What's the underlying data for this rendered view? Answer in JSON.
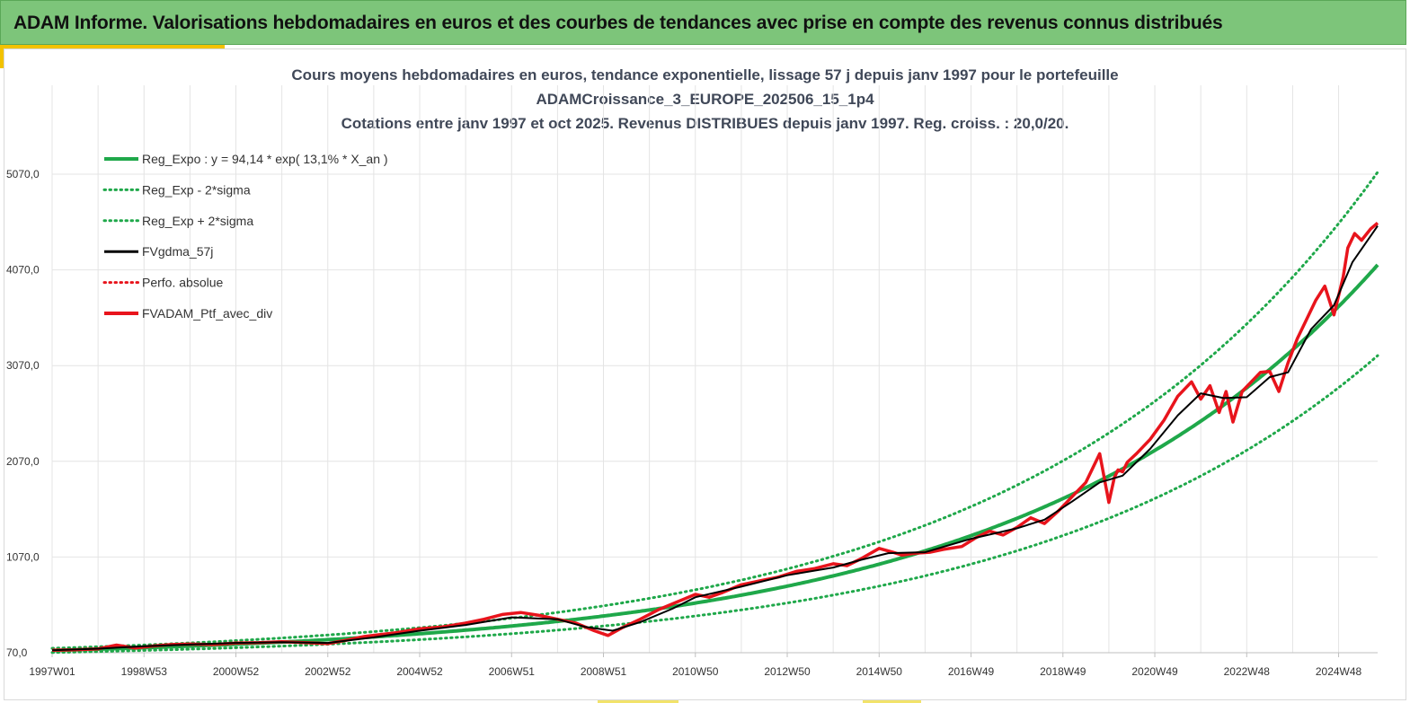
{
  "banner": {
    "title": "ADAM Informe. Valorisations hebdomadaires en euros et des courbes de tendances avec prise en compte des revenus connus distribués"
  },
  "colors": {
    "banner_bg": "#7dc57a",
    "accent": "#f2c200",
    "green": "#1fa84a",
    "red": "#e8141c",
    "black": "#000000"
  },
  "chart_data": {
    "type": "line",
    "title_lines": [
      "Cours moyens hebdomadaires  en euros, tendance exponentielle, lissage 57 j depuis janv 1997 pour le portefeuille",
      "ADAMCroissance_3_EUROPE_202506_15_1p4",
      "Cotations  entre janv 1997 et oct 2025. Revenus DISTRIBUES depuis janv 1997. Reg. croiss. : 20,0/20."
    ],
    "x_tick_labels": [
      "1997W01",
      "1998W53",
      "2000W52",
      "2002W52",
      "2004W52",
      "2006W51",
      "2008W51",
      "2010W50",
      "2012W50",
      "2014W50",
      "2016W49",
      "2018W49",
      "2020W49",
      "2022W48",
      "2024W48"
    ],
    "x_tick_years": [
      1997,
      1999,
      2001,
      2003,
      2005,
      2007,
      2009,
      2011,
      2013,
      2015,
      2017,
      2019,
      2021,
      2023,
      2025
    ],
    "xlim": [
      1997,
      2025.85
    ],
    "y_tick_labels": [
      "70,0",
      "1070,0",
      "2070,0",
      "3070,0",
      "4070,0",
      "5070,0"
    ],
    "y_ticks": [
      70,
      1070,
      2070,
      3070,
      4070,
      5070
    ],
    "ylim": [
      70,
      5070
    ],
    "grid": true,
    "legend_position": "top-left",
    "legend": [
      {
        "name": "Reg_Expo : y = 94,14 * exp( 13,1% *  X_an )",
        "color": "#1fa84a",
        "style": "solid"
      },
      {
        "name": "Reg_Exp - 2*sigma",
        "color": "#1fa84a",
        "style": "dotted"
      },
      {
        "name": "Reg_Exp + 2*sigma",
        "color": "#1fa84a",
        "style": "dotted"
      },
      {
        "name": "FVgdma_57j",
        "color": "#000000",
        "style": "solid"
      },
      {
        "name": "Perfo. absolue",
        "color": "#e8141c",
        "style": "dotted"
      },
      {
        "name": "FVADAM_Ptf_avec_div",
        "color": "#e8141c",
        "style": "solid"
      }
    ],
    "regression": {
      "a": 94.14,
      "rate": 0.131,
      "lower_factor": 0.77,
      "upper_factor": 1.235
    },
    "portfolio": {
      "name": "FVADAM_Ptf_avec_div",
      "x": [
        1997.0,
        1997.5,
        1998.0,
        1998.4,
        1998.8,
        1999.2,
        1999.6,
        2000.0,
        2000.5,
        2001.0,
        2001.5,
        2002.0,
        2002.5,
        2003.0,
        2003.4,
        2003.8,
        2004.5,
        2005.0,
        2005.5,
        2006.0,
        2006.4,
        2006.8,
        2007.2,
        2007.6,
        2008.0,
        2008.4,
        2008.8,
        2009.1,
        2009.4,
        2009.8,
        2010.2,
        2010.6,
        2011.0,
        2011.3,
        2011.6,
        2012.0,
        2012.4,
        2012.8,
        2013.2,
        2013.6,
        2014.0,
        2014.3,
        2014.6,
        2015.0,
        2015.3,
        2015.5,
        2015.8,
        2016.1,
        2016.4,
        2016.8,
        2017.1,
        2017.4,
        2017.7,
        2018.0,
        2018.3,
        2018.6,
        2018.9,
        2019.2,
        2019.5,
        2019.8,
        2020.0,
        2020.12,
        2020.2,
        2020.3,
        2020.4,
        2020.6,
        2020.9,
        2021.2,
        2021.5,
        2021.8,
        2022.0,
        2022.2,
        2022.4,
        2022.55,
        2022.7,
        2022.9,
        2023.1,
        2023.3,
        2023.5,
        2023.7,
        2023.9,
        2024.1,
        2024.3,
        2024.5,
        2024.7,
        2024.9,
        2025.1,
        2025.2,
        2025.35,
        2025.5,
        2025.7,
        2025.85
      ],
      "y": [
        95,
        100,
        110,
        150,
        120,
        140,
        155,
        160,
        155,
        170,
        175,
        185,
        175,
        165,
        200,
        240,
        280,
        320,
        340,
        380,
        420,
        470,
        490,
        460,
        420,
        380,
        300,
        250,
        330,
        420,
        520,
        600,
        680,
        650,
        700,
        780,
        820,
        860,
        920,
        950,
        1000,
        980,
        1050,
        1160,
        1120,
        1090,
        1110,
        1120,
        1150,
        1180,
        1270,
        1340,
        1300,
        1380,
        1480,
        1420,
        1550,
        1700,
        1850,
        2150,
        1640,
        1900,
        1980,
        1960,
        2060,
        2150,
        2300,
        2500,
        2750,
        2900,
        2720,
        2860,
        2580,
        2800,
        2480,
        2800,
        2900,
        3000,
        3010,
        2800,
        3100,
        3350,
        3550,
        3750,
        3900,
        3600,
        4000,
        4300,
        4450,
        4380,
        4500,
        4560
      ]
    },
    "moving_average": {
      "name": "FVgdma_57j",
      "x": [
        1997.0,
        1998.0,
        1999.0,
        2000.0,
        2001.0,
        2002.0,
        2003.0,
        2004.0,
        2005.0,
        2006.0,
        2007.0,
        2008.0,
        2008.6,
        2009.2,
        2009.8,
        2010.5,
        2011.0,
        2012.0,
        2013.0,
        2014.0,
        2014.6,
        2015.2,
        2016.0,
        2017.0,
        2018.0,
        2018.6,
        2019.2,
        2019.8,
        2020.3,
        2020.9,
        2021.5,
        2022.0,
        2022.5,
        2023.0,
        2023.5,
        2023.9,
        2024.4,
        2024.9,
        2025.3,
        2025.85
      ],
      "y": [
        95,
        112,
        138,
        155,
        172,
        180,
        172,
        230,
        300,
        360,
        440,
        420,
        340,
        300,
        390,
        530,
        650,
        760,
        880,
        960,
        1040,
        1110,
        1120,
        1260,
        1370,
        1460,
        1650,
        1850,
        1920,
        2200,
        2550,
        2780,
        2730,
        2740,
        2950,
        3000,
        3450,
        3700,
        4150,
        4530
      ]
    }
  }
}
